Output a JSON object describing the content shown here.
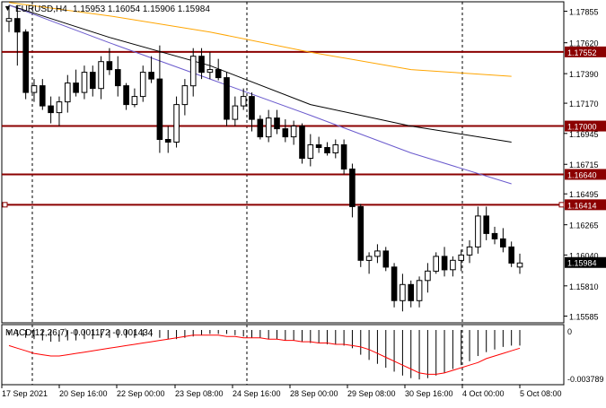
{
  "header": {
    "symbol_label": "EURUSD,H4",
    "ohlc": "1.15953 1.16054 1.15906 1.15984",
    "arrow": "▼"
  },
  "price_axis": {
    "ticks": [
      "1.17855",
      "1.17620",
      "1.17390",
      "1.17170",
      "1.16945",
      "1.16715",
      "1.16495",
      "1.16265",
      "1.16040",
      "1.15810",
      "1.15585"
    ],
    "current_price": "1.15984"
  },
  "levels": [
    {
      "label": "1.17552",
      "price": 1.17552
    },
    {
      "label": "1.17000",
      "price": 1.17
    },
    {
      "label": "1.16640",
      "price": 1.1664
    },
    {
      "label": "1.16414",
      "price": 1.16414
    }
  ],
  "macd": {
    "title": "MACD(12,26,7) -0.001172 -0.001434",
    "axis_top": "0",
    "axis_bottom": "-0.003789"
  },
  "time_axis": [
    "17 Sep 2021",
    "20 Sep 16:00",
    "22 Sep 00:00",
    "23 Sep 08:00",
    "24 Sep 16:00",
    "28 Sep 00:00",
    "29 Sep 08:00",
    "30 Sep 16:00",
    "4 Oct 00:00",
    "5 Oct 08:00"
  ],
  "colors": {
    "background": "#ffffff",
    "plot_bg": "#e6e6e6",
    "level": "#8b0000",
    "ma_orange": "#ffa500",
    "ma_black": "#000000",
    "ma_blue": "#6a5acd",
    "macd_signal": "#ff0000",
    "bull": "#ffffff",
    "bear": "#000000"
  },
  "chart_data": {
    "type": "candlestick",
    "title": "EURUSD,H4",
    "ylim": [
      1.15535,
      1.17925
    ],
    "candles": [
      [
        1.1778,
        1.179,
        1.177,
        1.178
      ],
      [
        1.178,
        1.179,
        1.1745,
        1.177
      ],
      [
        1.177,
        1.1772,
        1.172,
        1.1725
      ],
      [
        1.1725,
        1.1735,
        1.1718,
        1.173
      ],
      [
        1.173,
        1.1735,
        1.1712,
        1.1715
      ],
      [
        1.1715,
        1.1722,
        1.1702,
        1.171
      ],
      [
        1.171,
        1.1722,
        1.17,
        1.1718
      ],
      [
        1.1718,
        1.1738,
        1.171,
        1.1732
      ],
      [
        1.1732,
        1.1742,
        1.1722,
        1.1725
      ],
      [
        1.1725,
        1.1745,
        1.172,
        1.174
      ],
      [
        1.174,
        1.1745,
        1.1722,
        1.1728
      ],
      [
        1.1728,
        1.1752,
        1.172,
        1.1748
      ],
      [
        1.1748,
        1.1758,
        1.1738,
        1.1742
      ],
      [
        1.1742,
        1.1752,
        1.1722,
        1.173
      ],
      [
        1.173,
        1.1732,
        1.1712,
        1.1716
      ],
      [
        1.1716,
        1.1728,
        1.1714,
        1.1722
      ],
      [
        1.1722,
        1.1745,
        1.1718,
        1.174
      ],
      [
        1.174,
        1.1752,
        1.1732,
        1.1735
      ],
      [
        1.1735,
        1.176,
        1.168,
        1.169
      ],
      [
        1.169,
        1.17,
        1.168,
        1.1688
      ],
      [
        1.1688,
        1.1722,
        1.1684,
        1.1716
      ],
      [
        1.1716,
        1.1735,
        1.1708,
        1.173
      ],
      [
        1.173,
        1.1758,
        1.1722,
        1.1752
      ],
      [
        1.1752,
        1.1758,
        1.1735,
        1.174
      ],
      [
        1.174,
        1.1755,
        1.1735,
        1.1742
      ],
      [
        1.1742,
        1.175,
        1.1734,
        1.1736
      ],
      [
        1.1736,
        1.174,
        1.17,
        1.1705
      ],
      [
        1.1705,
        1.1722,
        1.17,
        1.1715
      ],
      [
        1.1715,
        1.1728,
        1.1712,
        1.1722
      ],
      [
        1.1722,
        1.1725,
        1.1696,
        1.1705
      ],
      [
        1.1705,
        1.1708,
        1.169,
        1.1692
      ],
      [
        1.1692,
        1.1712,
        1.1688,
        1.1706
      ],
      [
        1.1706,
        1.1712,
        1.1694,
        1.1698
      ],
      [
        1.1698,
        1.1705,
        1.1688,
        1.1692
      ],
      [
        1.1692,
        1.1704,
        1.1686,
        1.17
      ],
      [
        1.17,
        1.1702,
        1.1672,
        1.1676
      ],
      [
        1.1676,
        1.1694,
        1.167,
        1.1686
      ],
      [
        1.1686,
        1.1692,
        1.168,
        1.1684
      ],
      [
        1.1684,
        1.1688,
        1.1678,
        1.168
      ],
      [
        1.168,
        1.169,
        1.1676,
        1.1686
      ],
      [
        1.1686,
        1.169,
        1.1664,
        1.1668
      ],
      [
        1.1668,
        1.1672,
        1.1632,
        1.164
      ],
      [
        1.164,
        1.1642,
        1.1595,
        1.16
      ],
      [
        1.16,
        1.1606,
        1.159,
        1.1603
      ],
      [
        1.1603,
        1.1612,
        1.1598,
        1.1607
      ],
      [
        1.1607,
        1.161,
        1.1592,
        1.1595
      ],
      [
        1.1595,
        1.1598,
        1.1565,
        1.157
      ],
      [
        1.157,
        1.159,
        1.1562,
        1.1582
      ],
      [
        1.1582,
        1.1585,
        1.1565,
        1.157
      ],
      [
        1.157,
        1.1588,
        1.1565,
        1.1585
      ],
      [
        1.1585,
        1.1598,
        1.1576,
        1.1592
      ],
      [
        1.1592,
        1.1606,
        1.159,
        1.1603
      ],
      [
        1.1603,
        1.161,
        1.1588,
        1.1593
      ],
      [
        1.1593,
        1.1603,
        1.1588,
        1.16
      ],
      [
        1.16,
        1.1608,
        1.1592,
        1.1604
      ],
      [
        1.1604,
        1.1615,
        1.1598,
        1.161
      ],
      [
        1.161,
        1.164,
        1.1605,
        1.1633
      ],
      [
        1.1633,
        1.164,
        1.1615,
        1.162
      ],
      [
        1.162,
        1.1625,
        1.1612,
        1.1616
      ],
      [
        1.1616,
        1.1624,
        1.1606,
        1.161
      ],
      [
        1.161,
        1.1614,
        1.1595,
        1.1598
      ],
      [
        1.1595,
        1.1605,
        1.159,
        1.1598
      ]
    ],
    "series": [
      {
        "x": [
          0,
          12,
          24,
          36,
          48,
          60
        ],
        "values": [
          1.1792,
          1.1782,
          1.177,
          1.1755,
          1.1742,
          1.1737
        ]
      },
      {
        "x": [
          0,
          12,
          24,
          36,
          48,
          60
        ],
        "values": [
          1.179,
          1.1766,
          1.1745,
          1.1716,
          1.17,
          1.1688
        ]
      },
      {
        "x": [
          0,
          12,
          24,
          36,
          48,
          60
        ],
        "values": [
          1.179,
          1.1762,
          1.1735,
          1.1708,
          1.168,
          1.1657
        ]
      }
    ],
    "macd_hist": [
      -0.0004,
      -0.0005,
      -0.0006,
      -0.0007,
      -0.0008,
      -0.0009,
      -0.0009,
      -0.0008,
      -0.0008,
      -0.0007,
      -0.0007,
      -0.0006,
      -0.0006,
      -0.0006,
      -0.0006,
      -0.0006,
      -0.0005,
      -0.0005,
      -0.0006,
      -0.0007,
      -0.0007,
      -0.0006,
      -0.0005,
      -0.0004,
      -0.0003,
      -0.0003,
      -0.0003,
      -0.0004,
      -0.0005,
      -0.0006,
      -0.0006,
      -0.0007,
      -0.0007,
      -0.0008,
      -0.0008,
      -0.0009,
      -0.001,
      -0.001,
      -0.0011,
      -0.0011,
      -0.0012,
      -0.0014,
      -0.0019,
      -0.0023,
      -0.0026,
      -0.0029,
      -0.0032,
      -0.0035,
      -0.0037,
      -0.0038,
      -0.0037,
      -0.0035,
      -0.0033,
      -0.003,
      -0.0027,
      -0.0024,
      -0.002,
      -0.0017,
      -0.0015,
      -0.0013,
      -0.0012,
      -0.0012
    ],
    "macd_signal": [
      -0.0012,
      -0.0014,
      -0.0016,
      -0.0018,
      -0.0019,
      -0.002,
      -0.002,
      -0.0019,
      -0.0018,
      -0.0017,
      -0.0016,
      -0.0015,
      -0.0014,
      -0.0013,
      -0.0012,
      -0.0011,
      -0.001,
      -0.0009,
      -0.0008,
      -0.0007,
      -0.0006,
      -0.0005,
      -0.0004,
      -0.0004,
      -0.0004,
      -0.0004,
      -0.0005,
      -0.0005,
      -0.0006,
      -0.0006,
      -0.0006,
      -0.0007,
      -0.0007,
      -0.0008,
      -0.0008,
      -0.0009,
      -0.0009,
      -0.001,
      -0.001,
      -0.0011,
      -0.0011,
      -0.0012,
      -0.0013,
      -0.0015,
      -0.0018,
      -0.0021,
      -0.0024,
      -0.0027,
      -0.003,
      -0.0033,
      -0.0034,
      -0.0034,
      -0.0033,
      -0.0031,
      -0.0029,
      -0.0027,
      -0.0025,
      -0.0022,
      -0.002,
      -0.0018,
      -0.0016,
      -0.0014
    ]
  }
}
